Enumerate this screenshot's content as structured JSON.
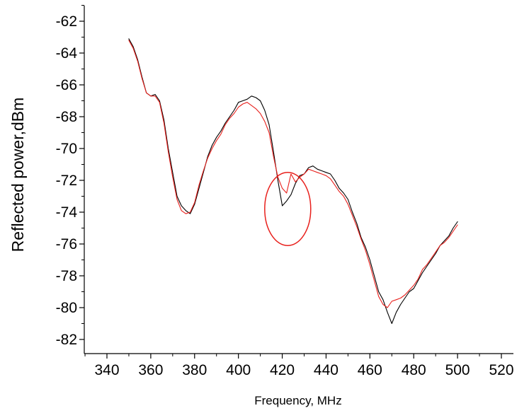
{
  "chart_data": {
    "type": "line",
    "title": "",
    "xlabel": "Frequency, MHz",
    "ylabel": "Reflected power,dBm",
    "xlim": [
      330,
      520
    ],
    "ylim": [
      -83,
      -61
    ],
    "x_ticks": [
      340,
      360,
      380,
      400,
      420,
      440,
      460,
      480,
      500,
      520
    ],
    "y_ticks": [
      -62,
      -64,
      -66,
      -68,
      -70,
      -72,
      -74,
      -76,
      -78,
      -80,
      -82
    ],
    "grid": false,
    "legend": "none",
    "series": [
      {
        "color": "#000000",
        "points": [
          [
            350,
            -63.1
          ],
          [
            352,
            -63.6
          ],
          [
            354,
            -64.4
          ],
          [
            356,
            -65.5
          ],
          [
            358,
            -66.5
          ],
          [
            360,
            -66.7
          ],
          [
            362,
            -66.6
          ],
          [
            364,
            -67.0
          ],
          [
            366,
            -68.2
          ],
          [
            368,
            -70.0
          ],
          [
            370,
            -71.5
          ],
          [
            372,
            -73.0
          ],
          [
            374,
            -73.6
          ],
          [
            376,
            -73.9
          ],
          [
            378,
            -74.1
          ],
          [
            380,
            -73.5
          ],
          [
            382,
            -72.5
          ],
          [
            384,
            -71.5
          ],
          [
            386,
            -70.5
          ],
          [
            388,
            -69.8
          ],
          [
            390,
            -69.3
          ],
          [
            392,
            -68.9
          ],
          [
            394,
            -68.4
          ],
          [
            396,
            -68.0
          ],
          [
            398,
            -67.6
          ],
          [
            400,
            -67.1
          ],
          [
            402,
            -67.0
          ],
          [
            404,
            -66.9
          ],
          [
            406,
            -66.7
          ],
          [
            408,
            -66.8
          ],
          [
            410,
            -67.0
          ],
          [
            412,
            -67.6
          ],
          [
            414,
            -68.5
          ],
          [
            416,
            -70.2
          ],
          [
            418,
            -72.0
          ],
          [
            420,
            -73.6
          ],
          [
            422,
            -73.3
          ],
          [
            424,
            -72.9
          ],
          [
            426,
            -72.2
          ],
          [
            428,
            -71.7
          ],
          [
            430,
            -71.6
          ],
          [
            432,
            -71.2
          ],
          [
            434,
            -71.1
          ],
          [
            436,
            -71.3
          ],
          [
            438,
            -71.4
          ],
          [
            440,
            -71.5
          ],
          [
            442,
            -71.6
          ],
          [
            444,
            -72.0
          ],
          [
            446,
            -72.5
          ],
          [
            448,
            -72.8
          ],
          [
            450,
            -73.2
          ],
          [
            452,
            -74.0
          ],
          [
            454,
            -74.7
          ],
          [
            456,
            -75.6
          ],
          [
            458,
            -76.2
          ],
          [
            460,
            -77.0
          ],
          [
            462,
            -78.0
          ],
          [
            464,
            -79.0
          ],
          [
            466,
            -79.5
          ],
          [
            468,
            -80.3
          ],
          [
            470,
            -81.0
          ],
          [
            472,
            -80.3
          ],
          [
            474,
            -79.8
          ],
          [
            476,
            -79.4
          ],
          [
            478,
            -79.0
          ],
          [
            480,
            -78.8
          ],
          [
            482,
            -78.3
          ],
          [
            484,
            -77.8
          ],
          [
            486,
            -77.4
          ],
          [
            488,
            -77.0
          ],
          [
            490,
            -76.6
          ],
          [
            492,
            -76.1
          ],
          [
            494,
            -75.8
          ],
          [
            496,
            -75.5
          ],
          [
            498,
            -75.0
          ],
          [
            500,
            -74.6
          ]
        ]
      },
      {
        "color": "#e8201c",
        "points": [
          [
            350,
            -63.2
          ],
          [
            352,
            -63.7
          ],
          [
            354,
            -64.5
          ],
          [
            356,
            -65.6
          ],
          [
            358,
            -66.5
          ],
          [
            360,
            -66.7
          ],
          [
            362,
            -66.7
          ],
          [
            364,
            -67.1
          ],
          [
            366,
            -68.4
          ],
          [
            368,
            -70.2
          ],
          [
            370,
            -71.8
          ],
          [
            372,
            -73.2
          ],
          [
            374,
            -73.9
          ],
          [
            376,
            -74.1
          ],
          [
            378,
            -74.0
          ],
          [
            380,
            -73.4
          ],
          [
            382,
            -72.3
          ],
          [
            384,
            -71.4
          ],
          [
            386,
            -70.6
          ],
          [
            388,
            -70.0
          ],
          [
            390,
            -69.5
          ],
          [
            392,
            -69.1
          ],
          [
            394,
            -68.5
          ],
          [
            396,
            -68.1
          ],
          [
            398,
            -67.8
          ],
          [
            400,
            -67.4
          ],
          [
            402,
            -67.2
          ],
          [
            404,
            -67.1
          ],
          [
            406,
            -67.3
          ],
          [
            408,
            -67.5
          ],
          [
            410,
            -67.8
          ],
          [
            412,
            -68.3
          ],
          [
            414,
            -69.0
          ],
          [
            416,
            -70.5
          ],
          [
            418,
            -71.8
          ],
          [
            420,
            -72.5
          ],
          [
            422,
            -72.8
          ],
          [
            424,
            -71.6
          ],
          [
            426,
            -72.1
          ],
          [
            428,
            -71.8
          ],
          [
            430,
            -71.6
          ],
          [
            432,
            -71.3
          ],
          [
            434,
            -71.4
          ],
          [
            436,
            -71.5
          ],
          [
            438,
            -71.6
          ],
          [
            440,
            -71.7
          ],
          [
            442,
            -71.9
          ],
          [
            444,
            -72.3
          ],
          [
            446,
            -72.7
          ],
          [
            448,
            -73.0
          ],
          [
            450,
            -73.5
          ],
          [
            452,
            -74.2
          ],
          [
            454,
            -74.9
          ],
          [
            456,
            -75.7
          ],
          [
            458,
            -76.4
          ],
          [
            460,
            -77.3
          ],
          [
            462,
            -78.3
          ],
          [
            464,
            -79.3
          ],
          [
            466,
            -79.8
          ],
          [
            468,
            -80.0
          ],
          [
            470,
            -79.6
          ],
          [
            472,
            -79.5
          ],
          [
            474,
            -79.4
          ],
          [
            476,
            -79.2
          ],
          [
            478,
            -78.9
          ],
          [
            480,
            -78.6
          ],
          [
            482,
            -78.2
          ],
          [
            484,
            -77.6
          ],
          [
            486,
            -77.3
          ],
          [
            488,
            -76.9
          ],
          [
            490,
            -76.5
          ],
          [
            492,
            -76.1
          ],
          [
            494,
            -75.9
          ],
          [
            496,
            -75.6
          ],
          [
            498,
            -75.2
          ],
          [
            500,
            -74.8
          ]
        ]
      }
    ],
    "annotations": [
      {
        "type": "circle",
        "color": "#e8201c",
        "center": [
          422.5,
          -73.8
        ],
        "radius_x": 10.5,
        "radius_y": 2.3
      }
    ]
  }
}
